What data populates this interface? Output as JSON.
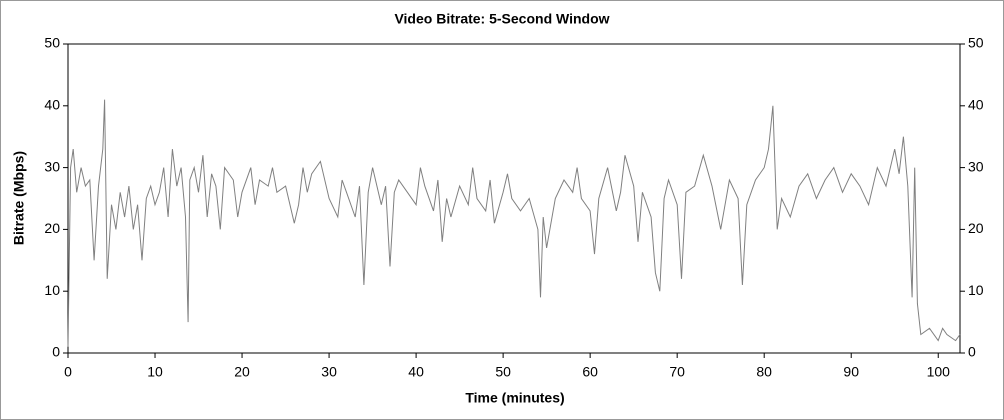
{
  "chart_data": {
    "type": "line",
    "title": "Video Bitrate: 5-Second Window",
    "xlabel": "Time (minutes)",
    "ylabel": "Bitrate (Mbps)",
    "x": [
      0,
      0.3,
      0.6,
      1,
      1.5,
      2,
      2.5,
      3,
      3.5,
      4,
      4.2,
      4.5,
      5,
      5.5,
      6,
      6.5,
      7,
      7.5,
      8,
      8.5,
      9,
      9.5,
      10,
      10.5,
      11,
      11.5,
      12,
      12.5,
      13,
      13.5,
      13.8,
      14,
      14.5,
      15,
      15.5,
      16,
      16.5,
      17,
      17.5,
      18,
      19,
      19.5,
      20,
      21,
      21.5,
      22,
      23,
      23.5,
      24,
      25,
      26,
      26.5,
      27,
      27.5,
      28,
      29,
      30,
      31,
      31.5,
      32,
      33,
      33.5,
      34,
      34.5,
      35,
      36,
      36.5,
      37,
      37.5,
      38,
      39,
      40,
      40.5,
      41,
      42,
      42.5,
      43,
      43.5,
      44,
      45,
      46,
      46.5,
      47,
      48,
      48.5,
      49,
      50,
      50.5,
      51,
      52,
      53,
      54,
      54.3,
      54.6,
      55,
      56,
      57,
      58,
      58.5,
      59,
      60,
      60.5,
      61,
      62,
      63,
      63.5,
      64,
      65,
      65.5,
      66,
      67,
      67.5,
      68,
      68.5,
      69,
      70,
      70.5,
      71,
      72,
      73,
      74,
      75,
      76,
      77,
      77.5,
      78,
      79,
      80,
      80.5,
      81,
      81.5,
      82,
      83,
      84,
      85,
      86,
      87,
      88,
      89,
      90,
      91,
      92,
      93,
      94,
      95,
      95.5,
      96,
      96.5,
      97,
      97.3,
      97.6,
      98,
      99,
      100,
      100.5,
      101,
      102,
      102.5
    ],
    "series": [
      {
        "name": "Bitrate",
        "color": "#808080",
        "values": [
          1,
          30,
          33,
          26,
          30,
          27,
          28,
          15,
          27,
          33,
          41,
          12,
          24,
          20,
          26,
          22,
          27,
          20,
          24,
          15,
          25,
          27,
          24,
          26,
          30,
          22,
          33,
          27,
          30,
          22,
          5,
          28,
          30,
          26,
          32,
          22,
          29,
          27,
          20,
          30,
          28,
          22,
          26,
          30,
          24,
          28,
          27,
          30,
          26,
          27,
          21,
          24,
          30,
          26,
          29,
          31,
          25,
          22,
          28,
          26,
          22,
          27,
          11,
          26,
          30,
          24,
          27,
          14,
          26,
          28,
          26,
          24,
          30,
          27,
          23,
          28,
          18,
          25,
          22,
          27,
          24,
          30,
          25,
          23,
          28,
          21,
          26,
          29,
          25,
          23,
          25,
          20,
          9,
          22,
          17,
          25,
          28,
          26,
          30,
          25,
          23,
          16,
          25,
          30,
          23,
          26,
          32,
          27,
          18,
          26,
          22,
          13,
          10,
          25,
          28,
          24,
          12,
          26,
          27,
          32,
          27,
          20,
          28,
          25,
          11,
          24,
          28,
          30,
          33,
          40,
          20,
          25,
          22,
          27,
          29,
          25,
          28,
          30,
          26,
          29,
          27,
          24,
          30,
          27,
          33,
          29,
          35,
          27,
          9,
          30,
          8,
          3,
          4,
          2,
          4,
          3,
          2,
          3
        ]
      }
    ],
    "xlim": [
      0,
      102.5
    ],
    "xticks": [
      0,
      10,
      20,
      30,
      40,
      50,
      60,
      70,
      80,
      90,
      100
    ],
    "ylim": [
      0,
      50
    ],
    "yticks": [
      0,
      10,
      20,
      30,
      40,
      50
    ],
    "y2lim": [
      0,
      50
    ],
    "y2ticks": [
      0,
      10,
      20,
      30,
      40,
      50
    ]
  }
}
